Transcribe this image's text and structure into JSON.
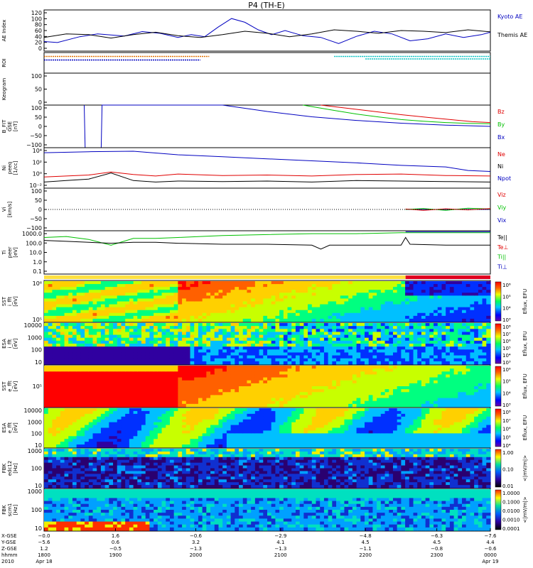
{
  "chart_data": {
    "type": "line",
    "title": "P4 (TH-E)",
    "colors": {
      "red": "#e00000",
      "green": "#00c000",
      "blue": "#0000c0",
      "black": "#000000",
      "orange": "#e07000",
      "cyan": "#00c0c0"
    },
    "panels": [
      {
        "id": "ae",
        "ylabel": "AE Index",
        "yticks": [
          "120",
          "100",
          "80",
          "60",
          "40",
          "20",
          "0"
        ],
        "ylim": [
          0,
          120
        ],
        "legend": [
          {
            "label": "Kyoto AE",
            "color": "blue"
          },
          {
            "label": "Themis AE",
            "color": "black"
          }
        ],
        "series": [
          {
            "name": "Kyoto AE",
            "color": "blue",
            "x": [
              0,
              0.3,
              0.8,
              1.2,
              1.8,
              2.2,
              2.6,
              3.0,
              3.3,
              3.6,
              3.9,
              4.2,
              4.5,
              4.8,
              5.1,
              5.4,
              5.8,
              6.2,
              6.6,
              7.0,
              7.4,
              7.8,
              8.2,
              8.6,
              9.0,
              9.4,
              9.8,
              10.0
            ],
            "y": [
              28,
              25,
              42,
              50,
              44,
              57,
              52,
              40,
              48,
              42,
              70,
              95,
              84,
              62,
              48,
              60,
              45,
              40,
              22,
              43,
              58,
              50,
              30,
              36,
              50,
              40,
              48,
              55
            ]
          },
          {
            "name": "Themis AE",
            "color": "black",
            "x": [
              0,
              0.5,
              1.0,
              1.5,
              2.0,
              2.5,
              3.0,
              3.5,
              4.0,
              4.5,
              5.0,
              5.5,
              6.0,
              6.5,
              7.0,
              7.5,
              8.0,
              8.5,
              9.0,
              9.5,
              10.0
            ],
            "y": [
              40,
              50,
              48,
              38,
              48,
              55,
              45,
              40,
              48,
              58,
              52,
              42,
              50,
              62,
              58,
              52,
              60,
              58,
              54,
              62,
              56
            ]
          }
        ]
      },
      {
        "id": "roi",
        "ylabel": "ROI",
        "yticks": [],
        "bars": [
          {
            "color": "orange",
            "x0": 0.0,
            "x1": 3.7,
            "row": 0.25
          },
          {
            "color": "blue",
            "x0": 0.0,
            "x1": 3.5,
            "row": 0.75
          },
          {
            "color": "cyan",
            "x0": 6.5,
            "x1": 10.0,
            "row": 0.25
          },
          {
            "color": "cyan",
            "x0": 7.2,
            "x1": 10.0,
            "row": 0.6
          }
        ]
      },
      {
        "id": "keo",
        "ylabel": "Keogram",
        "yticks": [
          "100",
          "50",
          "0"
        ]
      },
      {
        "id": "bfit",
        "ylabel": "B_FIT\nGSE\n[nT]",
        "yticks": [
          "100",
          "50",
          "0",
          "−50",
          "−100"
        ],
        "ylim": [
          -100,
          100
        ],
        "legend": [
          {
            "label": "Bz",
            "color": "red"
          },
          {
            "label": "By",
            "color": "green"
          },
          {
            "label": "Bx",
            "color": "blue"
          }
        ],
        "series": [
          {
            "name": "Bx",
            "color": "blue",
            "x": [
              0.9,
              0.92,
              1.2,
              1.22,
              1.28,
              1.3,
              4.0,
              5.0,
              6.0,
              7.0,
              8.0,
              9.0,
              10.0
            ],
            "y": [
              100,
              -100,
              -100,
              -100,
              -100,
              100,
              100,
              70,
              45,
              28,
              15,
              6,
              0
            ]
          },
          {
            "name": "By",
            "color": "green",
            "x": [
              5.8,
              6.5,
              7.0,
              7.5,
              8.0,
              8.5,
              9.0,
              9.5,
              10.0
            ],
            "y": [
              100,
              75,
              58,
              44,
              32,
              24,
              18,
              14,
              12
            ]
          },
          {
            "name": "Bz",
            "color": "red",
            "x": [
              6.2,
              6.8,
              7.4,
              8.0,
              8.6,
              9.2,
              9.6,
              10.0
            ],
            "y": [
              100,
              85,
              70,
              55,
              42,
              30,
              22,
              18
            ]
          }
        ]
      },
      {
        "id": "ni",
        "ylabel": "Ni\npeeq\n[1/cc]",
        "yticks": [
          "10⁴",
          "10²",
          "10⁰",
          "10⁻²"
        ],
        "ylim": [
          -3,
          5
        ],
        "log": true,
        "legend": [
          {
            "label": "Ne",
            "color": "red"
          },
          {
            "label": "Ni",
            "color": "black"
          },
          {
            "label": "Npot",
            "color": "blue"
          }
        ],
        "series": [
          {
            "name": "Npot",
            "color": "blue",
            "x": [
              0,
              1,
              2,
              3,
              4,
              5,
              6,
              7,
              8,
              9,
              9.5,
              10
            ],
            "y": [
              4.0,
              4.2,
              4.3,
              3.6,
              3.2,
              2.8,
              2.4,
              2.0,
              1.5,
              1.2,
              0.5,
              0.3
            ]
          },
          {
            "name": "Ne",
            "color": "red",
            "x": [
              0,
              0.5,
              1,
              1.5,
              2,
              2.5,
              3,
              4,
              5,
              6,
              7,
              8,
              9,
              10
            ],
            "y": [
              -0.8,
              -0.6,
              -0.4,
              0.2,
              -0.3,
              -0.6,
              -0.2,
              -0.5,
              -0.4,
              -0.6,
              -0.3,
              -0.2,
              -0.5,
              -0.6
            ]
          },
          {
            "name": "Ni",
            "color": "black",
            "x": [
              0,
              0.5,
              1,
              1.5,
              2,
              2.5,
              3,
              4,
              5,
              6,
              7,
              8,
              9,
              10
            ],
            "y": [
              -1.8,
              -1.5,
              -1.2,
              0.0,
              -1.5,
              -1.8,
              -1.6,
              -1.7,
              -1.6,
              -1.8,
              -1.5,
              -1.6,
              -1.7,
              -1.8
            ]
          }
        ]
      },
      {
        "id": "vi",
        "ylabel": "Vi\n[km/s]",
        "yticks": [
          "100",
          "50",
          "0",
          "−50",
          "−100"
        ],
        "ylim": [
          -100,
          100
        ],
        "legend": [
          {
            "label": "Viz",
            "color": "red"
          },
          {
            "label": "Viy",
            "color": "green"
          },
          {
            "label": "Vix",
            "color": "blue"
          }
        ],
        "series": [
          {
            "name": "Vix",
            "color": "blue",
            "x": [
              8.1,
              10.0
            ],
            "y": [
              0,
              0
            ]
          },
          {
            "name": "Viy",
            "color": "green",
            "x": [
              8.1,
              8.5,
              9.0,
              9.5,
              10.0
            ],
            "y": [
              0,
              4,
              -4,
              6,
              2
            ]
          },
          {
            "name": "Viz",
            "color": "red",
            "x": [
              8.1,
              8.5,
              9.0,
              9.5,
              10.0
            ],
            "y": [
              2,
              -4,
              3,
              -2,
              4
            ]
          }
        ]
      },
      {
        "id": "ti",
        "ylabel": "Ti\npeer\n[eV]",
        "yticks": [
          "1000.0",
          "100.0",
          "10.0",
          "1.0",
          "0.1"
        ],
        "ylim": [
          -1,
          3.5
        ],
        "log": true,
        "legend": [
          {
            "label": "Te||",
            "color": "black"
          },
          {
            "label": "Te⊥",
            "color": "red"
          },
          {
            "label": "Ti||",
            "color": "green"
          },
          {
            "label": "Ti⊥",
            "color": "blue"
          }
        ],
        "series": [
          {
            "name": "Ti||",
            "color": "green",
            "x": [
              0,
              0.5,
              1,
              1.5,
              2,
              2.5,
              3,
              3.5,
              4,
              5,
              6,
              7,
              8,
              9,
              10
            ],
            "y": [
              2.8,
              2.9,
              2.6,
              2.0,
              2.7,
              2.7,
              2.8,
              2.9,
              3.0,
              3.1,
              3.2,
              3.2,
              3.3,
              3.3,
              3.3
            ]
          },
          {
            "name": "Ti⊥",
            "color": "blue",
            "x": [
              8.1,
              9.0,
              10.0
            ],
            "y": [
              3.4,
              3.4,
              3.4
            ]
          },
          {
            "name": "Te||",
            "color": "black",
            "x": [
              0,
              0.5,
              1,
              1.5,
              2,
              2.5,
              3,
              4,
              5,
              6,
              6.2,
              6.4,
              7,
              8,
              8.1,
              8.2,
              9,
              10
            ],
            "y": [
              2.5,
              2.4,
              2.3,
              2.2,
              2.3,
              2.3,
              2.2,
              2.1,
              2.1,
              2.0,
              1.6,
              2.0,
              2.0,
              2.0,
              2.8,
              2.1,
              2.0,
              2.0
            ]
          }
        ]
      },
      {
        "id": "sst1",
        "ylabel": "SST\ni_fft\n[eV]",
        "yticks": [
          "10⁶",
          "10⁵"
        ],
        "cbar": "Eflux, EFU",
        "cbticks": [
          "10⁶",
          "10⁵",
          "10⁴",
          "10³"
        ],
        "spec": {
          "seed": 3,
          "boundary": 3.0,
          "mode": "sst"
        }
      },
      {
        "id": "esa1",
        "ylabel": "ESA\ni_fft\n[eV]",
        "yticks": [
          "10000",
          "1000",
          "100",
          "10"
        ],
        "cbar": "Eflux, EFU",
        "cbticks": [
          "10⁸",
          "10⁷",
          "10⁶",
          "10⁵",
          "10⁴",
          "10³"
        ],
        "spec": {
          "seed": 7,
          "boundary": 3.2,
          "mode": "noisy"
        }
      },
      {
        "id": "sst2",
        "ylabel": "SST\ne_fft\n[eV]",
        "yticks": [
          "10⁵"
        ],
        "cbar": "Eflux, EFU",
        "cbticks": [
          "10⁶",
          "10⁵",
          "10⁴",
          "10³"
        ],
        "spec": {
          "seed": 11,
          "boundary": 3.0,
          "mode": "hot"
        }
      },
      {
        "id": "esa2",
        "ylabel": "ESA\ne_fft\n[eV]",
        "yticks": [
          "10000",
          "1000",
          "100",
          "10"
        ],
        "cbar": "Eflux, EFU",
        "cbticks": [
          "10⁸",
          "10⁷",
          "10⁶",
          "10⁵",
          "10⁴"
        ],
        "spec": {
          "seed": 5,
          "boundary": 3.1,
          "mode": "esa"
        }
      },
      {
        "id": "fbk1",
        "ylabel": "FBK\nedc12\n[Hz]",
        "yticks": [
          "1000",
          "100",
          "10"
        ],
        "cbar": "<|mV/m|>",
        "cbticks": [
          "1.00",
          "0.10",
          "0.01"
        ],
        "spec": {
          "seed": 13,
          "boundary": 0,
          "mode": "fbk"
        }
      },
      {
        "id": "fbk2",
        "ylabel": "FBK\nscm1\n[Hz]",
        "yticks": [
          "1000",
          "100",
          "10"
        ],
        "cbar": "<|mV/m|>",
        "cbticks": [
          "1.0000",
          "0.1000",
          "0.0100",
          "0.0010",
          "0.0001"
        ],
        "spec": {
          "seed": 17,
          "boundary": 0,
          "mode": "fbk2"
        }
      }
    ],
    "modebar": [
      {
        "color": "#ffe040",
        "x0": 0.0,
        "x1": 8.1
      },
      {
        "color": "#e00020",
        "x0": 8.1,
        "x1": 10.0
      }
    ],
    "xaxis": {
      "row_labels": [
        "X-GSE",
        "Y-GSE",
        "Z-GSE",
        "hhmm",
        "2010"
      ],
      "ticks": [
        {
          "x": 0.0,
          "vals": [
            "−0.0",
            "−5.6",
            "1.2",
            "1800",
            "Apr 18"
          ]
        },
        {
          "x": 1.6,
          "vals": [
            "1.6",
            "0.6",
            "−0.5",
            "1900",
            ""
          ]
        },
        {
          "x": 3.4,
          "vals": [
            "−0.6",
            "3.2",
            "−1.3",
            "2000",
            ""
          ]
        },
        {
          "x": 5.3,
          "vals": [
            "−2.9",
            "4.1",
            "−1.3",
            "2100",
            ""
          ]
        },
        {
          "x": 7.2,
          "vals": [
            "−4.8",
            "4.5",
            "−1.1",
            "2200",
            ""
          ]
        },
        {
          "x": 8.8,
          "vals": [
            "−6.3",
            "4.5",
            "−0.8",
            "2300",
            ""
          ]
        },
        {
          "x": 10.0,
          "vals": [
            "−7.6",
            "4.4",
            "−0.6",
            "0000",
            "Apr 19"
          ]
        }
      ]
    }
  }
}
